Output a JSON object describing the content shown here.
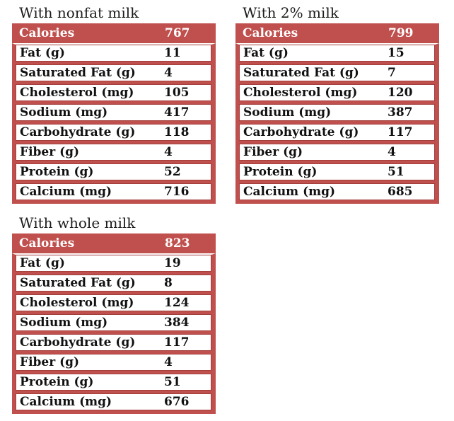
{
  "colors": {
    "accent_red": "#C0504D",
    "cell_border_red": "#A23F3C",
    "header_text": "#FFFFFF",
    "body_text": "#111111"
  },
  "tables": [
    {
      "title": "With nonfat milk",
      "header": {
        "label": "Calories",
        "value": "767"
      },
      "rows": [
        {
          "label": "Fat (g)",
          "value": "11"
        },
        {
          "label": "Saturated Fat (g)",
          "value": "4"
        },
        {
          "label": "Cholesterol (mg)",
          "value": "105"
        },
        {
          "label": "Sodium (mg)",
          "value": "417"
        },
        {
          "label": "Carbohydrate (g)",
          "value": "118"
        },
        {
          "label": "Fiber (g)",
          "value": "4"
        },
        {
          "label": "Protein (g)",
          "value": "52"
        },
        {
          "label": "Calcium (mg)",
          "value": "716"
        }
      ]
    },
    {
      "title": "With 2% milk",
      "header": {
        "label": "Calories",
        "value": "799"
      },
      "rows": [
        {
          "label": "Fat (g)",
          "value": "15"
        },
        {
          "label": "Saturated Fat (g)",
          "value": "7"
        },
        {
          "label": "Cholesterol (mg)",
          "value": "120"
        },
        {
          "label": "Sodium (mg)",
          "value": "387"
        },
        {
          "label": "Carbohydrate (g)",
          "value": "117"
        },
        {
          "label": "Fiber (g)",
          "value": "4"
        },
        {
          "label": "Protein (g)",
          "value": "51"
        },
        {
          "label": "Calcium (mg)",
          "value": "685"
        }
      ]
    },
    {
      "title": "With whole milk",
      "header": {
        "label": "Calories",
        "value": "823"
      },
      "rows": [
        {
          "label": "Fat (g)",
          "value": "19"
        },
        {
          "label": "Saturated Fat (g)",
          "value": "8"
        },
        {
          "label": "Cholesterol (mg)",
          "value": "124"
        },
        {
          "label": "Sodium (mg)",
          "value": "384"
        },
        {
          "label": "Carbohydrate (g)",
          "value": "117"
        },
        {
          "label": "Fiber (g)",
          "value": "4"
        },
        {
          "label": "Protein (g)",
          "value": "51"
        },
        {
          "label": "Calcium (mg)",
          "value": "676"
        }
      ]
    }
  ]
}
